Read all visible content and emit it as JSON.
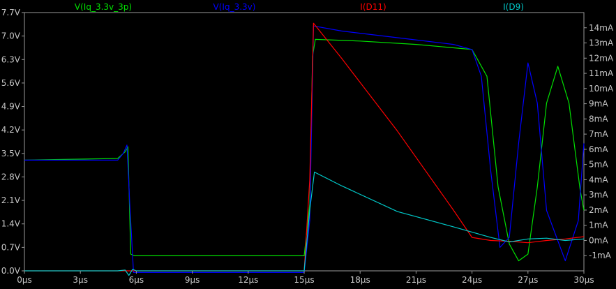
{
  "chart_data": {
    "type": "line",
    "xlabel": "",
    "ylabel": "",
    "x_ticks": [
      "0µs",
      "3µs",
      "6µs",
      "9µs",
      "12µs",
      "15µs",
      "18µs",
      "21µs",
      "24µs",
      "27µs",
      "30µs"
    ],
    "y_left_ticks": [
      "0.0V",
      "0.7V",
      "1.4V",
      "2.1V",
      "2.8V",
      "3.5V",
      "4.2V",
      "4.9V",
      "5.6V",
      "6.3V",
      "7.0V",
      "7.7V"
    ],
    "y_right_ticks": [
      "-1mA",
      "0mA",
      "1mA",
      "2mA",
      "3mA",
      "4mA",
      "5mA",
      "6mA",
      "7mA",
      "8mA",
      "9mA",
      "10mA",
      "11mA",
      "12mA",
      "13mA",
      "14mA"
    ],
    "xlim": [
      0,
      30
    ],
    "ylim_left": [
      0,
      7.7
    ],
    "ylim_right": [
      -2,
      15
    ],
    "grid": false,
    "background": "#000000",
    "series": [
      {
        "name": "V(Iq_3.3v_3p)",
        "axis": "left",
        "color": "#00e000",
        "x": [
          0,
          5.0,
          5.4,
          5.55,
          5.7,
          5.9,
          15.0,
          15.3,
          15.45,
          15.6,
          18.0,
          21.0,
          24.0,
          24.8,
          25.4,
          26.0,
          26.5,
          27.0,
          27.5,
          28.0,
          28.6,
          29.2,
          29.8,
          30.0
        ],
        "y": [
          3.3,
          3.35,
          3.55,
          3.7,
          0.5,
          0.45,
          0.45,
          2.0,
          6.4,
          6.9,
          6.85,
          6.75,
          6.6,
          5.8,
          2.5,
          0.8,
          0.3,
          0.5,
          2.5,
          5.0,
          6.1,
          5.0,
          2.4,
          1.8
        ]
      },
      {
        "name": "V(Iq_3.3v)",
        "axis": "left",
        "color": "#0000ff",
        "x": [
          0,
          5.0,
          5.3,
          5.5,
          5.65,
          5.85,
          15.0,
          15.3,
          15.5,
          17.0,
          20.0,
          23.0,
          24.0,
          24.5,
          25.0,
          25.5,
          26.0,
          26.5,
          27.0,
          27.5,
          28.0,
          29.0,
          29.7,
          30.0
        ],
        "y": [
          3.3,
          3.3,
          3.5,
          3.75,
          2.0,
          -0.05,
          -0.05,
          1.5,
          7.3,
          7.15,
          6.95,
          6.75,
          6.6,
          5.8,
          3.0,
          0.7,
          1.0,
          3.8,
          6.2,
          5.0,
          1.8,
          0.3,
          1.5,
          3.8
        ]
      },
      {
        "name": "I(D11)",
        "axis": "right",
        "color": "#ff0000",
        "x": [
          0,
          15.0,
          15.3,
          15.5,
          17.0,
          20.0,
          23.0,
          24.0,
          25.0,
          26.0,
          27.0,
          28.0,
          29.0,
          30.0
        ],
        "y": [
          -2,
          -2,
          4,
          14.3,
          12.0,
          7.2,
          2.0,
          0.2,
          0.0,
          -0.05,
          -0.15,
          0.0,
          0.1,
          0.25
        ]
      },
      {
        "name": "I(D9)",
        "axis": "right",
        "color": "#00c8c8",
        "x": [
          0,
          5.0,
          5.4,
          5.6,
          5.8,
          6.0,
          15.0,
          15.3,
          15.55,
          17.0,
          20.0,
          23.0,
          25.0,
          26.0,
          27.0,
          28.0,
          29.0,
          30.0
        ],
        "y": [
          -2,
          -2,
          -1.95,
          -2.3,
          -1.9,
          -2,
          -2,
          2.0,
          4.5,
          3.6,
          1.9,
          0.9,
          0.2,
          -0.1,
          0.1,
          0.15,
          0.0,
          0.1
        ]
      }
    ]
  }
}
